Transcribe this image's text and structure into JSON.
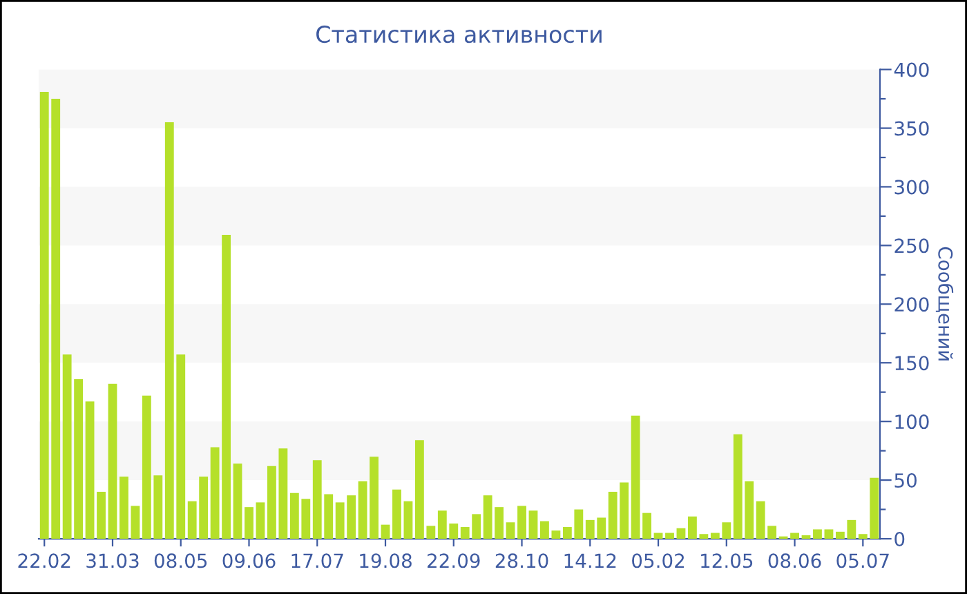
{
  "chart_data": {
    "type": "bar",
    "title": "Статистика активности",
    "ylabel": "Сообщений",
    "categories": [
      "22.02",
      null,
      null,
      null,
      null,
      null,
      "31.03",
      null,
      null,
      null,
      null,
      null,
      "08.05",
      null,
      null,
      null,
      null,
      null,
      "09.06",
      null,
      null,
      null,
      null,
      null,
      "17.07",
      null,
      null,
      null,
      null,
      null,
      "19.08",
      null,
      null,
      null,
      null,
      null,
      "22.09",
      null,
      null,
      null,
      null,
      null,
      "28.10",
      null,
      null,
      null,
      null,
      null,
      "14.12",
      null,
      null,
      null,
      null,
      null,
      "05.02",
      null,
      null,
      null,
      null,
      null,
      "12.05",
      null,
      null,
      null,
      null,
      null,
      "08.06",
      null,
      null,
      null,
      null,
      null,
      "05.07",
      null
    ],
    "values": [
      381,
      375,
      157,
      136,
      117,
      40,
      132,
      53,
      28,
      122,
      54,
      355,
      157,
      32,
      53,
      78,
      259,
      64,
      27,
      31,
      62,
      77,
      39,
      34,
      67,
      38,
      31,
      37,
      49,
      70,
      12,
      42,
      32,
      84,
      11,
      24,
      13,
      10,
      21,
      37,
      27,
      14,
      28,
      24,
      15,
      7,
      10,
      25,
      16,
      18,
      40,
      48,
      105,
      22,
      5,
      5,
      9,
      19,
      4,
      5,
      14,
      89,
      49,
      32,
      11,
      2,
      5,
      3,
      8,
      8,
      6,
      16,
      4,
      52
    ],
    "color": "#b5e02a",
    "ylim": [
      0,
      400
    ],
    "yticks": [
      0,
      {
        "value": 25,
        "label": null
      },
      50,
      {
        "value": 75,
        "label": null
      },
      100,
      {
        "value": 125,
        "label": null
      },
      150,
      {
        "value": 175,
        "label": null
      },
      200,
      {
        "value": 225,
        "label": null
      },
      250,
      {
        "value": 275,
        "label": null
      },
      300,
      {
        "value": 325,
        "label": null
      },
      350,
      {
        "value": 375,
        "label": null
      },
      400
    ],
    "bands": [
      {
        "axis": "y",
        "from": 50,
        "to": 100,
        "color": "#f7f7f7"
      },
      {
        "axis": "y",
        "from": 150,
        "to": 200,
        "color": "#f7f7f7"
      },
      {
        "axis": "y",
        "from": 250,
        "to": 300,
        "color": "#f7f7f7"
      },
      {
        "axis": "y",
        "from": 350,
        "to": 400,
        "color": "#f7f7f7"
      }
    ],
    "grid": false
  }
}
